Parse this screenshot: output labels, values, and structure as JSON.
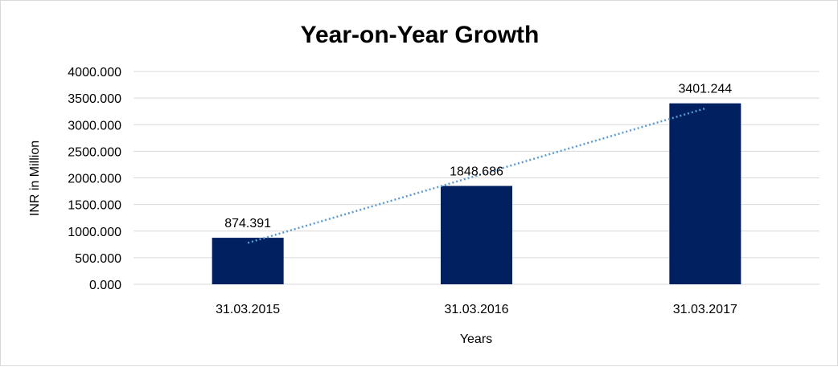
{
  "chart_data": {
    "type": "bar",
    "title": "Year-on-Year Growth",
    "xlabel": "Years",
    "ylabel": "INR in Million",
    "categories": [
      "31.03.2015",
      "31.03.2016",
      "31.03.2017"
    ],
    "series": [
      {
        "values": [
          874.391,
          1848.686,
          3401.244
        ]
      }
    ],
    "data_labels": [
      "874.391",
      "1848.686",
      "3401.244"
    ],
    "ylim": [
      0,
      4000
    ],
    "yticks": [
      0,
      500,
      1000,
      1500,
      2000,
      2500,
      3000,
      3500,
      4000
    ],
    "ytick_labels": [
      "0.000",
      "500.000",
      "1000.000",
      "1500.000",
      "2000.000",
      "2500.000",
      "3000.000",
      "3500.000",
      "4000.000"
    ],
    "trendline": {
      "type": "linear",
      "style": "dotted",
      "color": "#5b9bd5"
    },
    "grid": true,
    "legend": "none",
    "colors": {
      "bar": "#002060",
      "grid": "#d9d9d9",
      "trendline": "#5b9bd5"
    }
  }
}
